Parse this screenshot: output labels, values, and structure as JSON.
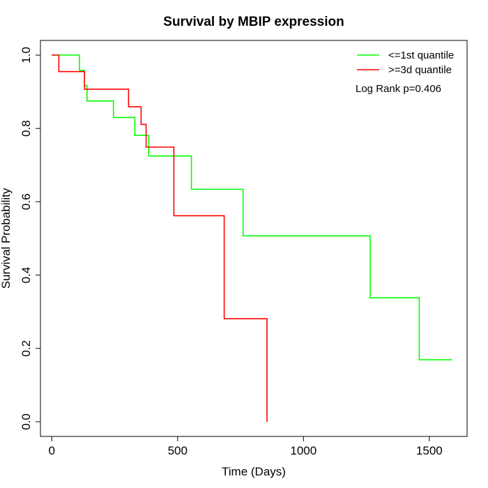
{
  "chart_data": {
    "type": "line",
    "title": "Survival by MBIP expression",
    "xlabel": "Time (Days)",
    "ylabel": "Survival Probability",
    "xlim": [
      -45,
      1650
    ],
    "ylim": [
      -0.04,
      1.04
    ],
    "xticks": [
      0,
      500,
      1000,
      1500
    ],
    "xtick_labels": [
      "0",
      "500",
      "1000",
      "1500"
    ],
    "yticks": [
      0.0,
      0.2,
      0.4,
      0.6,
      0.8,
      1.0
    ],
    "ytick_labels": [
      "0.0",
      "0.2",
      "0.4",
      "0.6",
      "0.8",
      "1.0"
    ],
    "grid": false,
    "legend_position": "top-right",
    "annotation": "Log Rank p=0.406",
    "series": [
      {
        "name": "<=1st quantile",
        "color": "#00ff00",
        "x": [
          0,
          110,
          130,
          140,
          245,
          330,
          385,
          555,
          760,
          1265,
          1460,
          1590
        ],
        "y": [
          1.0,
          0.958,
          0.917,
          0.875,
          0.83,
          0.781,
          0.725,
          0.634,
          0.507,
          0.338,
          0.169,
          0.169
        ]
      },
      {
        "name": ">=3d quantile",
        "color": "#ff0000",
        "x": [
          0,
          28,
          130,
          305,
          355,
          375,
          485,
          685,
          855
        ],
        "y": [
          1.0,
          0.955,
          0.907,
          0.859,
          0.811,
          0.749,
          0.562,
          0.281,
          0.0
        ]
      }
    ]
  }
}
